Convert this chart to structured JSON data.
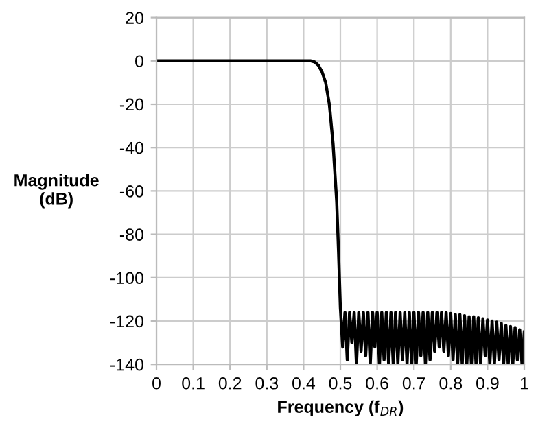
{
  "chart_data": {
    "type": "line",
    "xlabel": "Frequency (f$_{DR}$)",
    "ylabel": "Magnitude\n(dB)",
    "xlim": [
      0,
      1
    ],
    "ylim": [
      -140,
      20
    ],
    "xticks": [
      0,
      0.1,
      0.2,
      0.3,
      0.4,
      0.5,
      0.6,
      0.7,
      0.8,
      0.9,
      1
    ],
    "yticks": [
      -140,
      -120,
      -100,
      -80,
      -60,
      -40,
      -20,
      0,
      20
    ],
    "grid": true,
    "legend": false,
    "marker": "none",
    "line_style": "solid",
    "series": [
      {
        "color": "#000000",
        "x": [
          0,
          0.42,
          0.43,
          0.44,
          0.45,
          0.46,
          0.47,
          0.48,
          0.49,
          0.495,
          0.5,
          0.50625,
          0.5125,
          0.51875,
          0.525,
          0.53125,
          0.5375,
          0.54375,
          0.55,
          0.55625,
          0.5625,
          0.56875,
          0.575,
          0.58125,
          0.5875,
          0.59375,
          0.6,
          0.60625,
          0.6125,
          0.61875,
          0.625,
          0.63125,
          0.6375,
          0.64375,
          0.65,
          0.65625,
          0.6625,
          0.66875,
          0.675,
          0.68125,
          0.6875,
          0.69375,
          0.7,
          0.70625,
          0.7125,
          0.71875,
          0.725,
          0.73125,
          0.7375,
          0.74375,
          0.75,
          0.75625,
          0.7625,
          0.76875,
          0.775,
          0.78125,
          0.7875,
          0.79375,
          0.8,
          0.80625,
          0.8125,
          0.81875,
          0.825,
          0.83125,
          0.8375,
          0.84375,
          0.85,
          0.85625,
          0.8625,
          0.86875,
          0.875,
          0.88125,
          0.8875,
          0.89375,
          0.9,
          0.90625,
          0.9125,
          0.91875,
          0.925,
          0.93125,
          0.9375,
          0.94375,
          0.95,
          0.95625,
          0.9625,
          0.96875,
          0.975,
          0.98125,
          0.9875,
          0.99375,
          1.0
        ],
        "values": [
          0,
          0,
          -0.5,
          -2,
          -5,
          -10,
          -20,
          -38,
          -65,
          -88,
          -114,
          -132,
          -116,
          -138,
          -116,
          -130,
          -116,
          -140,
          -116,
          -134,
          -116,
          -136,
          -116,
          -140,
          -116,
          -132,
          -116,
          -140,
          -116,
          -138,
          -116,
          -140,
          -116,
          -140,
          -116,
          -140,
          -116,
          -138,
          -116,
          -140,
          -116,
          -140,
          -116,
          -140,
          -116,
          -136,
          -116,
          -140,
          -116,
          -138,
          -116,
          -134,
          -116,
          -132,
          -116,
          -134,
          -116,
          -136,
          -116.5,
          -138,
          -117,
          -140,
          -117,
          -140,
          -117.5,
          -140,
          -118,
          -140,
          -118,
          -140,
          -118.5,
          -140,
          -119,
          -136,
          -119.5,
          -140,
          -120,
          -140,
          -120.5,
          -138,
          -121,
          -140,
          -122,
          -140,
          -122.5,
          -140,
          -123,
          -138,
          -124,
          -140,
          -125
        ]
      }
    ]
  }
}
